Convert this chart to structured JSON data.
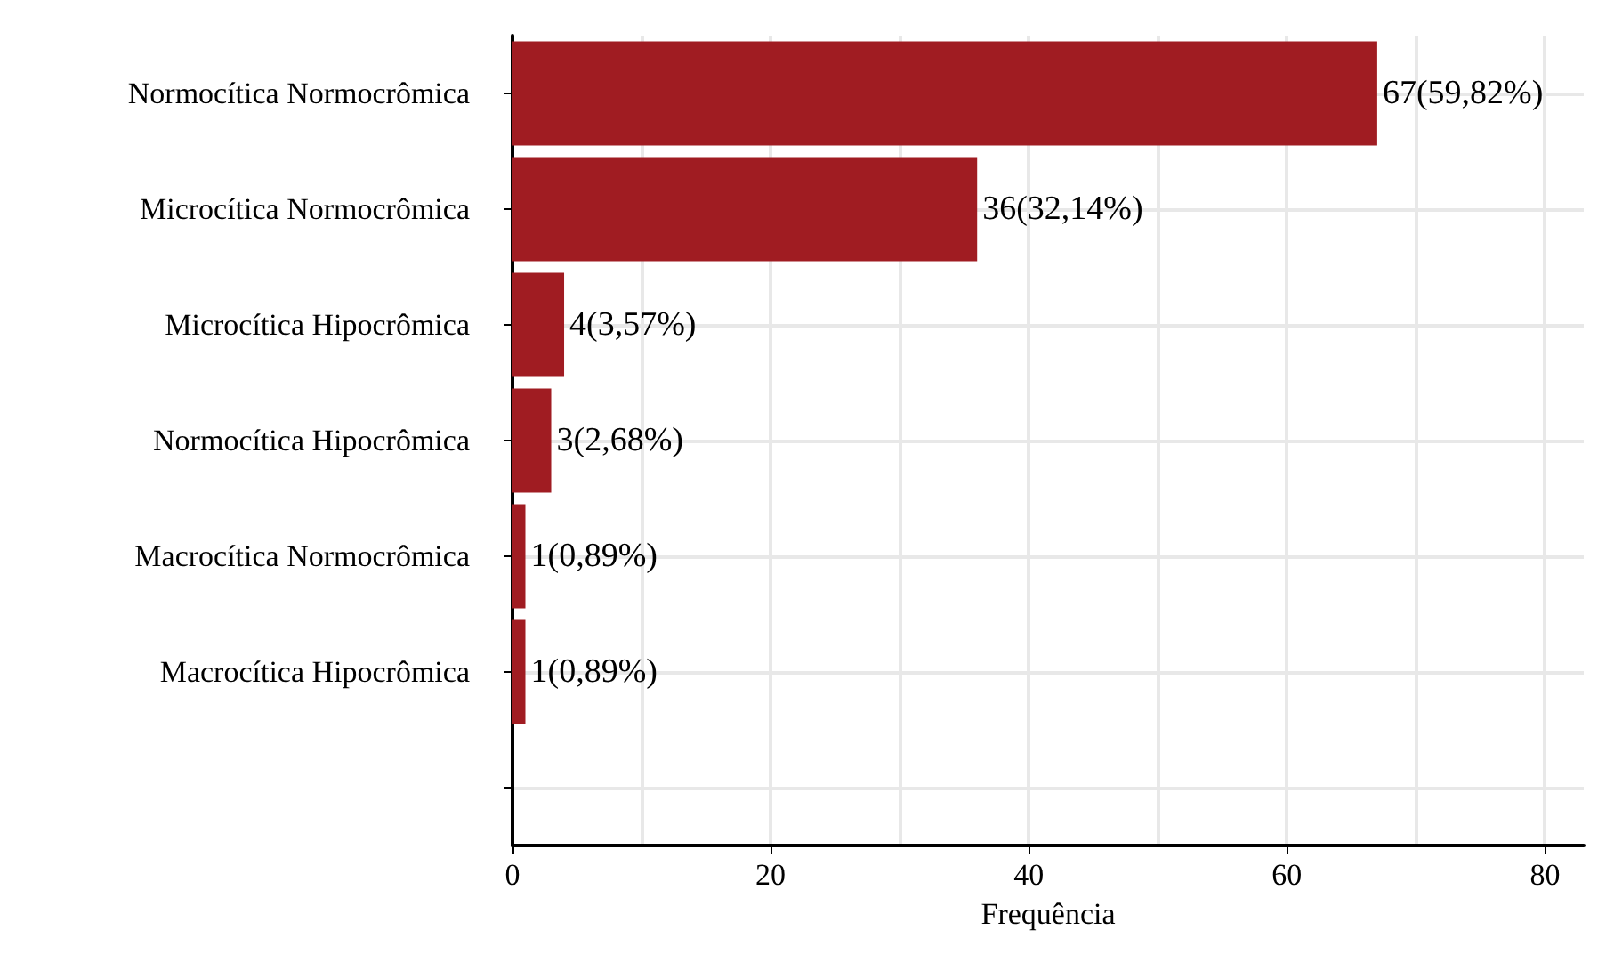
{
  "chart_data": {
    "type": "bar",
    "orientation": "horizontal",
    "xlabel": "Frequência",
    "categories": [
      "Normocítica Normocrômica",
      "Microcítica Normocrômica",
      "Microcítica Hipocrômica",
      "Normocítica Hipocrômica",
      "Macrocítica Normocrômica",
      "Macrocítica Hipocrômica",
      null
    ],
    "values": [
      67,
      36,
      4,
      3,
      1,
      1,
      null
    ],
    "value_labels": [
      "67(59,82%)",
      "36(32,14%)",
      "4(3,57%)",
      "3(2,68%)",
      "1(0,89%)",
      "1(0,89%)",
      null
    ],
    "color": "#a01c22",
    "xlim": [
      0,
      83
    ],
    "xticks": [
      0,
      {
        "value": 10,
        "label": null
      },
      20,
      {
        "value": 30,
        "label": null
      },
      40,
      {
        "value": 50,
        "label": null
      },
      60,
      {
        "value": 70,
        "label": null
      },
      80
    ],
    "grid": true
  }
}
